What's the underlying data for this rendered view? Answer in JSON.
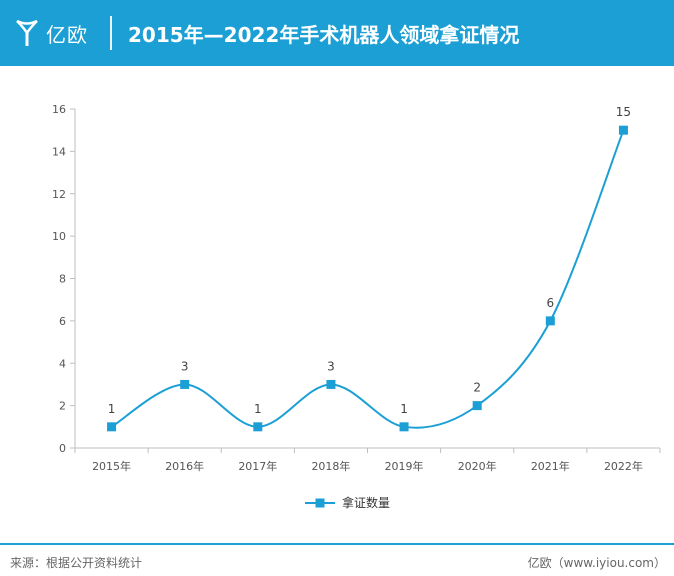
{
  "header": {
    "logo_text": "亿欧",
    "title": "2015年—2022年手术机器人领域拿证情况",
    "logo_icon": "yiou-y-logo-icon"
  },
  "footer": {
    "source": "来源：根据公开资料统计",
    "brand": "亿欧（www.iyiou.com）"
  },
  "colors": {
    "accent": "#1b9fd4",
    "series": "#1b9fd4"
  },
  "chart_data": {
    "type": "line",
    "categories": [
      "2015年",
      "2016年",
      "2017年",
      "2018年",
      "2019年",
      "2020年",
      "2021年",
      "2022年"
    ],
    "series": [
      {
        "name": "拿证数量",
        "values": [
          1,
          3,
          1,
          3,
          1,
          2,
          6,
          15
        ]
      }
    ],
    "yticks": [
      "0",
      "2",
      "4",
      "6",
      "8",
      "10",
      "12",
      "14",
      "16"
    ],
    "ylim": [
      0,
      16
    ],
    "smooth": true,
    "grid": false,
    "legend": "bottom-center",
    "marker": "square",
    "data_labels": true
  }
}
